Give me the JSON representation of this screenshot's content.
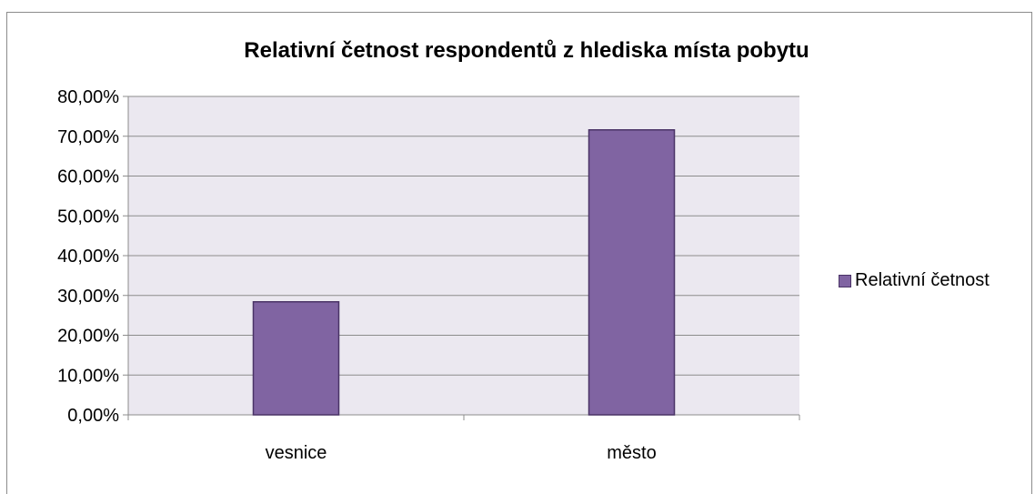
{
  "chart_data": {
    "type": "bar",
    "title": "Relativní četnost respondentů z hlediska místa pobytu",
    "categories": [
      "vesnice",
      "město"
    ],
    "series": [
      {
        "name": "Relativní četnost",
        "values": [
          0.284,
          0.716
        ],
        "color": "#8064a2"
      }
    ],
    "ylim": [
      0,
      0.8
    ],
    "yticks": [
      "0,00%",
      "10,00%",
      "20,00%",
      "30,00%",
      "40,00%",
      "50,00%",
      "60,00%",
      "70,00%",
      "80,00%"
    ],
    "xlabel": "",
    "ylabel": "",
    "grid": true,
    "legend_position": "right",
    "plot_background": "#ebe8f0"
  }
}
